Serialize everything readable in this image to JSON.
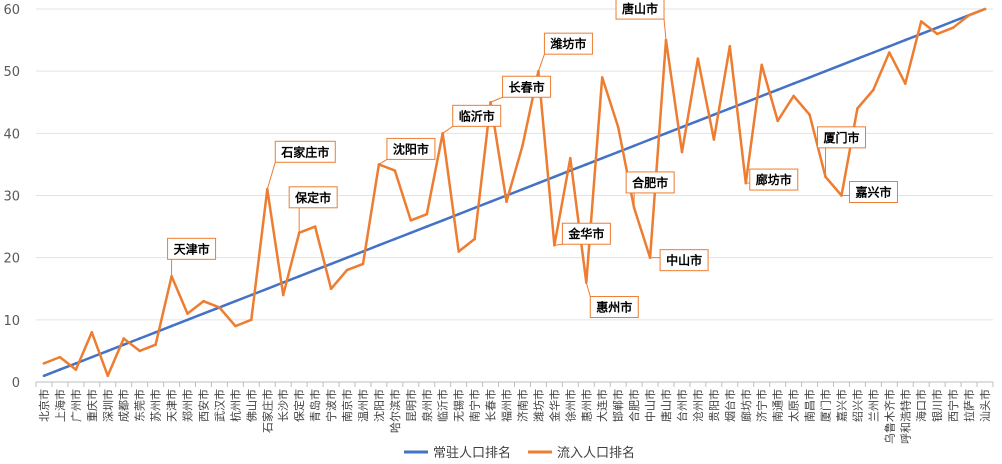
{
  "chart_data": {
    "type": "line",
    "title": "",
    "xlabel": "",
    "ylabel": "",
    "ylim": [
      0,
      60
    ],
    "yticks": [
      0,
      10,
      20,
      30,
      40,
      50,
      60
    ],
    "grid": true,
    "legend_position": "bottom",
    "categories": [
      "北京市",
      "上海市",
      "广州市",
      "重庆市",
      "深圳市",
      "成都市",
      "东莞市",
      "苏州市",
      "天津市",
      "郑州市",
      "西安市",
      "武汉市",
      "杭州市",
      "佛山市",
      "石家庄市",
      "长沙市",
      "保定市",
      "青岛市",
      "宁波市",
      "南京市",
      "温州市",
      "沈阳市",
      "哈尔滨市",
      "昆明市",
      "泉州市",
      "临沂市",
      "无锡市",
      "南宁市",
      "长春市",
      "福州市",
      "济南市",
      "潍坊市",
      "金华市",
      "徐州市",
      "惠州市",
      "大连市",
      "邯郸市",
      "合肥市",
      "中山市",
      "唐山市",
      "台州市",
      "沧州市",
      "贵阳市",
      "烟台市",
      "廊坊市",
      "济宁市",
      "南通市",
      "太原市",
      "南昌市",
      "厦门市",
      "嘉兴市",
      "绍兴市",
      "兰州市",
      "乌鲁木齐市",
      "呼和浩特市",
      "海口市",
      "银川市",
      "西宁市",
      "拉萨市",
      "汕头市"
    ],
    "series": [
      {
        "name": "常驻人口排名",
        "color": "#4472C4",
        "values": [
          1,
          2,
          3,
          4,
          5,
          6,
          7,
          8,
          9,
          10,
          11,
          12,
          13,
          14,
          15,
          16,
          17,
          18,
          19,
          20,
          21,
          22,
          23,
          24,
          25,
          26,
          27,
          28,
          29,
          30,
          31,
          32,
          33,
          34,
          35,
          36,
          37,
          38,
          39,
          40,
          41,
          42,
          43,
          44,
          45,
          46,
          47,
          48,
          49,
          50,
          51,
          52,
          53,
          54,
          55,
          56,
          57,
          58,
          59,
          60
        ]
      },
      {
        "name": "流入人口排名",
        "color": "#ED7D31",
        "values": [
          3,
          4,
          2,
          8,
          1,
          7,
          5,
          6,
          17,
          11,
          13,
          12,
          9,
          10,
          31,
          14,
          24,
          25,
          15,
          18,
          19,
          35,
          34,
          26,
          27,
          40,
          21,
          23,
          45,
          29,
          38,
          50,
          22,
          36,
          16,
          49,
          41,
          28,
          20,
          55,
          37,
          52,
          39,
          54,
          32,
          51,
          42,
          46,
          43,
          33,
          30,
          44,
          47,
          53,
          48,
          58,
          56,
          57,
          59,
          60
        ]
      }
    ],
    "annotations": [
      {
        "text": "天津市",
        "index": 8
      },
      {
        "text": "石家庄市",
        "index": 14
      },
      {
        "text": "保定市",
        "index": 16
      },
      {
        "text": "沈阳市",
        "index": 21
      },
      {
        "text": "临沂市",
        "index": 25
      },
      {
        "text": "长春市",
        "index": 28
      },
      {
        "text": "潍坊市",
        "index": 31
      },
      {
        "text": "金华市",
        "index": 32
      },
      {
        "text": "惠州市",
        "index": 34
      },
      {
        "text": "合肥市",
        "index": 37
      },
      {
        "text": "中山市",
        "index": 38
      },
      {
        "text": "唐山市",
        "index": 39
      },
      {
        "text": "廊坊市",
        "index": 44
      },
      {
        "text": "厦门市",
        "index": 49
      },
      {
        "text": "嘉兴市",
        "index": 50
      }
    ]
  }
}
